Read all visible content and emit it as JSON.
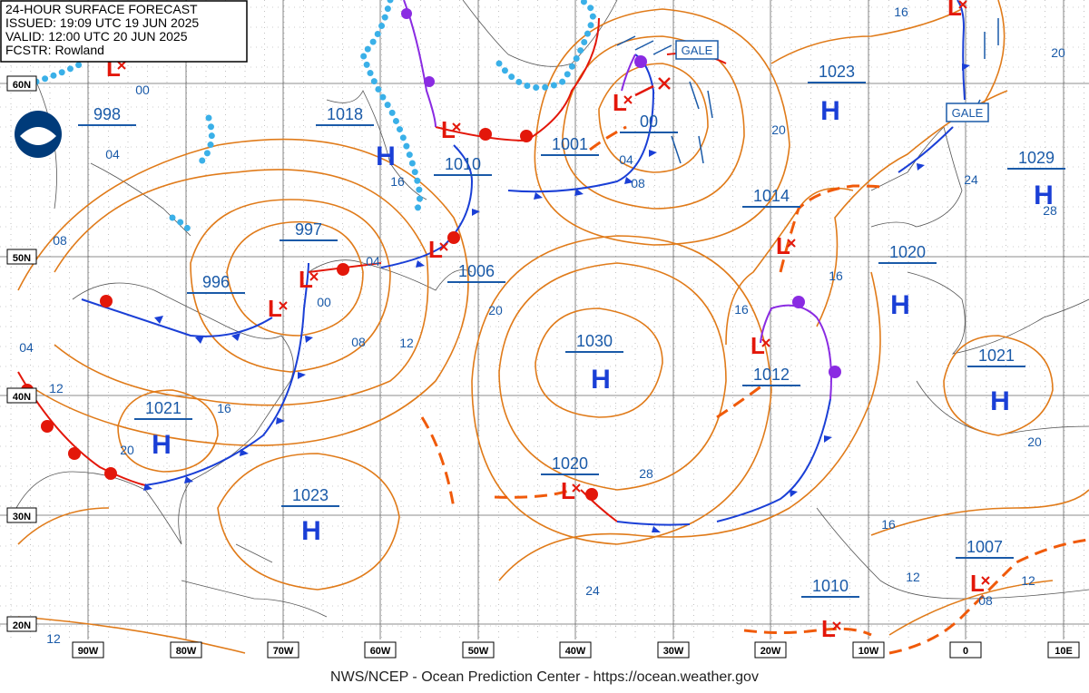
{
  "header": {
    "lines": [
      "24-HOUR SURFACE FORECAST",
      "ISSUED: 19:09 UTC 19 JUN 2025",
      "VALID: 12:00 UTC 20 JUN 2025",
      "FCSTR: Rowland"
    ]
  },
  "lat_labels": [
    "60N",
    "50N",
    "40N",
    "30N",
    "20N"
  ],
  "lon_labels": [
    "90W",
    "80W",
    "70W",
    "60W",
    "50W",
    "40W",
    "30W",
    "20W",
    "10W",
    "0",
    "10E"
  ],
  "high_symbol": "H",
  "low_symbol": "L",
  "high_pressures": [
    "1018",
    "1023",
    "1029",
    "1020",
    "1021",
    "1030",
    "1021",
    "1023"
  ],
  "low_pressures": [
    "998",
    "997",
    "996",
    "1010",
    "1006",
    "1001",
    "00",
    "1014",
    "1012",
    "1020",
    "1010",
    "1007"
  ],
  "isobar_labels": [
    "00",
    "04",
    "08",
    "04",
    "12",
    "20",
    "16",
    "16",
    "04",
    "00",
    "08",
    "12",
    "20",
    "28",
    "24",
    "04",
    "08",
    "20",
    "16",
    "20",
    "24",
    "28",
    "16",
    "16",
    "20",
    "16",
    "12",
    "12",
    "08",
    "12"
  ],
  "gale_labels": [
    "GALE",
    "GALE"
  ],
  "footer": "NWS/NCEP - Ocean Prediction Center - https://ocean.weather.gov"
}
